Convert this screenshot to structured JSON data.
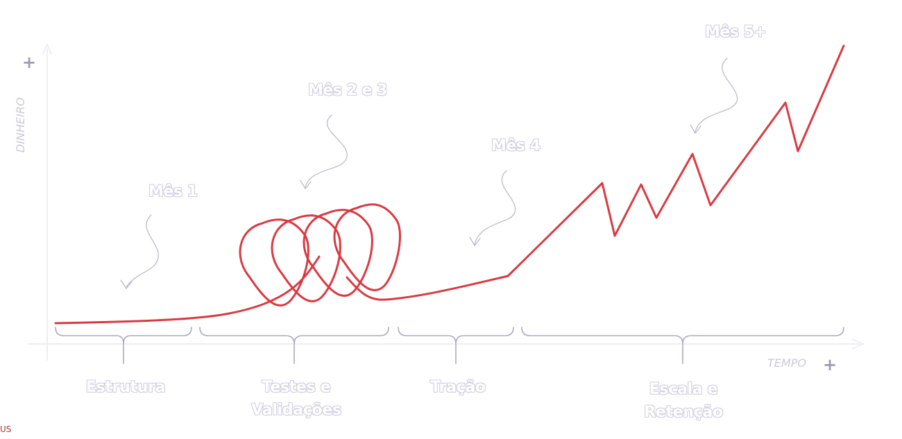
{
  "axes": {
    "y_label": "DINHEIRO",
    "y_plus": "+",
    "x_label": "TEMPO",
    "x_plus": "+"
  },
  "months": [
    {
      "label": "Mês 1"
    },
    {
      "label": "Mês 2 e 3"
    },
    {
      "label": "Mês 4"
    },
    {
      "label": "Mês 5+"
    }
  ],
  "phases": [
    {
      "line1": "Estrutura",
      "line2": ""
    },
    {
      "line1": "Testes e",
      "line2": "Validações"
    },
    {
      "line1": "Tração",
      "line2": ""
    },
    {
      "line1": "Escala e",
      "line2": "Retenção"
    }
  ],
  "footer_fragment": "US",
  "colors": {
    "curve": "#d93a42",
    "axis": "#eeeef4",
    "brace": "#a9abc1",
    "arrow": "#b9bbcc",
    "label_outline": "#cfd0e0"
  }
}
